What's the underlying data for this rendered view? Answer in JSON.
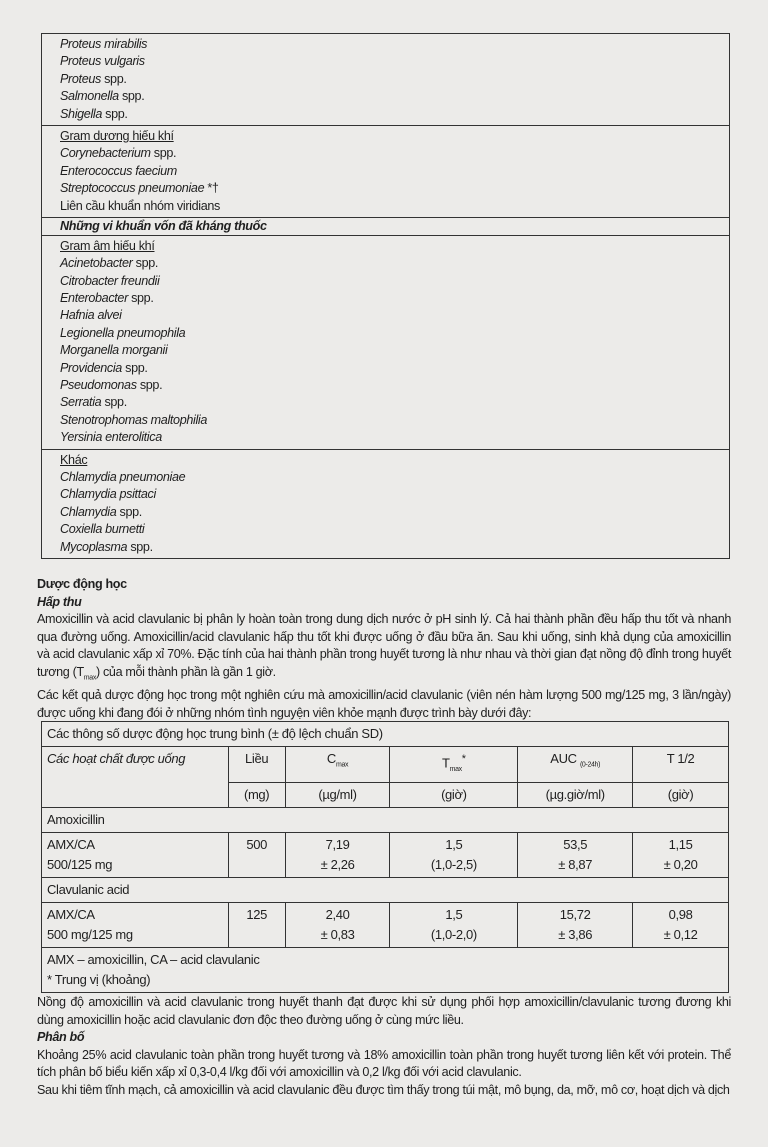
{
  "box": {
    "sec1": [
      {
        "name": "Proteus mirabilis",
        "suffix": ""
      },
      {
        "name": "Proteus vulgaris",
        "suffix": ""
      },
      {
        "name": "Proteus",
        "suffix": " spp."
      },
      {
        "name": "Salmonella",
        "suffix": " spp."
      },
      {
        "name": "Shigella",
        "suffix": " spp."
      }
    ],
    "sec2_title": "Gram dương hiếu khí",
    "sec2": [
      {
        "name": "Corynebacterium",
        "suffix": " spp."
      },
      {
        "name": "Enterococcus faecium",
        "suffix": ""
      },
      {
        "name": "Streptococcus pneumoniae",
        "suffix": " *†"
      }
    ],
    "sec2_last": "Liên cầu khuẩn nhóm viridians",
    "resistant_header": "Những vi khuẩn vốn đã kháng thuốc",
    "sec3_title": "Gram âm hiếu khí",
    "sec3": [
      {
        "name": "Acinetobacter",
        "suffix": " spp."
      },
      {
        "name": "Citrobacter freundii",
        "suffix": ""
      },
      {
        "name": "Enterobacter",
        "suffix": " spp."
      },
      {
        "name": "Hafnia alvei",
        "suffix": ""
      },
      {
        "name": "Legionella pneumophila",
        "suffix": ""
      },
      {
        "name": "Morganella morganii",
        "suffix": ""
      },
      {
        "name": "Providencia",
        "suffix": " spp."
      },
      {
        "name": "Pseudomonas",
        "suffix": " spp."
      },
      {
        "name": "Serratia",
        "suffix": " spp."
      },
      {
        "name": "Stenotrophomas maltophilia",
        "suffix": ""
      },
      {
        "name": "Yersinia enterolitica",
        "suffix": ""
      }
    ],
    "sec4_title": "Khác",
    "sec4": [
      {
        "name": "Chlamydia pneumoniae",
        "suffix": ""
      },
      {
        "name": "Chlamydia psittaci",
        "suffix": ""
      },
      {
        "name": "Chlamydia",
        "suffix": " spp."
      },
      {
        "name": "Coxiella burnetti",
        "suffix": ""
      },
      {
        "name": "Mycoplasma",
        "suffix": " spp."
      }
    ]
  },
  "text": {
    "heading": "Dược động học",
    "sub1": "Hấp thu",
    "p1a": "Amoxicillin và acid clavulanic bị phân ly hoàn toàn trong dung dịch nước ở pH sinh lý. Cả hai thành phần đều hấp thu tốt và nhanh qua đường uống. Amoxicillin/acid clavulanic hấp thu tốt khi được uống ở đầu bữa ăn. Sau khi uống, sinh khả dụng của amoxicillin và acid clavulanic xấp xỉ 70%. Đặc tính của hai thành phần trong huyết tương là như nhau và thời gian đạt nồng độ đỉnh trong huyết tương (T",
    "p1sub": "max",
    "p1b": ") của mỗi thành phần là gần 1 giờ.",
    "p2": "Các kết quả dược động học trong một nghiên cứu mà amoxicillin/acid clavulanic (viên nén hàm lượng 500 mg/125 mg, 3 lần/ngày) được uống khi đang đói ở những nhóm tình nguyện viên khỏe mạnh được trình bày dưới đây:"
  },
  "table": {
    "title": "Các thông số dược động học trung bình (± độ lệch chuẩn SD)",
    "col0": "Các hoạt chất được uống",
    "headers": [
      {
        "main": "Liều",
        "sub": "",
        "unit": "(mg)"
      },
      {
        "main": "C",
        "sub": "max",
        "unit": "(µg/ml)"
      },
      {
        "main": "T",
        "sub": "max",
        "sup": "*",
        "unit": "(giờ)"
      },
      {
        "main": "AUC ",
        "sub": "(0-24h)",
        "unit": "(µg.giờ/ml)"
      },
      {
        "main": "T 1/2",
        "sub": "",
        "unit": "(giờ)"
      }
    ],
    "groups": [
      {
        "name": "Amoxicillin",
        "row": {
          "label1": "AMX/CA",
          "label2": "500/125 mg",
          "dose": "500",
          "cmax": [
            "7,19",
            "± 2,26"
          ],
          "tmax": [
            "1,5",
            "(1,0-2,5)"
          ],
          "auc": [
            "53,5",
            "± 8,87"
          ],
          "t12": [
            "1,15",
            "± 0,20"
          ]
        }
      },
      {
        "name": "Clavulanic acid",
        "row": {
          "label1": "AMX/CA",
          "label2": "500 mg/125 mg",
          "dose": "125",
          "cmax": [
            "2,40",
            "± 0,83"
          ],
          "tmax": [
            "1,5",
            "(1,0-2,0)"
          ],
          "auc": [
            "15,72",
            "± 3,86"
          ],
          "t12": [
            "0,98",
            "± 0,12"
          ]
        }
      }
    ],
    "foot1": "AMX – amoxicillin, CA – acid clavulanic",
    "foot2": "* Trung vị (khoảng)"
  },
  "after": {
    "p3": "Nồng độ amoxicillin và acid clavulanic trong huyết thanh đạt được khi sử dụng phối hợp amoxicillin/clavulanic tương đương khi dùng amoxicillin hoặc acid clavulanic đơn độc theo đường uống ở cùng mức liều.",
    "sub2": "Phân bố",
    "p4": "Khoảng 25% acid clavulanic toàn phần trong huyết tương và 18% amoxicillin toàn phần trong huyết tương liên kết với protein. Thể tích phân bố biểu kiến xấp xỉ 0,3-0,4 l/kg đối với amoxicillin và 0,2 l/kg đối với acid clavulanic.",
    "p5": "Sau khi tiêm tĩnh mạch, cả amoxicillin và acid clavulanic đều được tìm thấy trong túi mật, mô bụng, da, mỡ, mô cơ, hoạt dịch và dịch"
  }
}
